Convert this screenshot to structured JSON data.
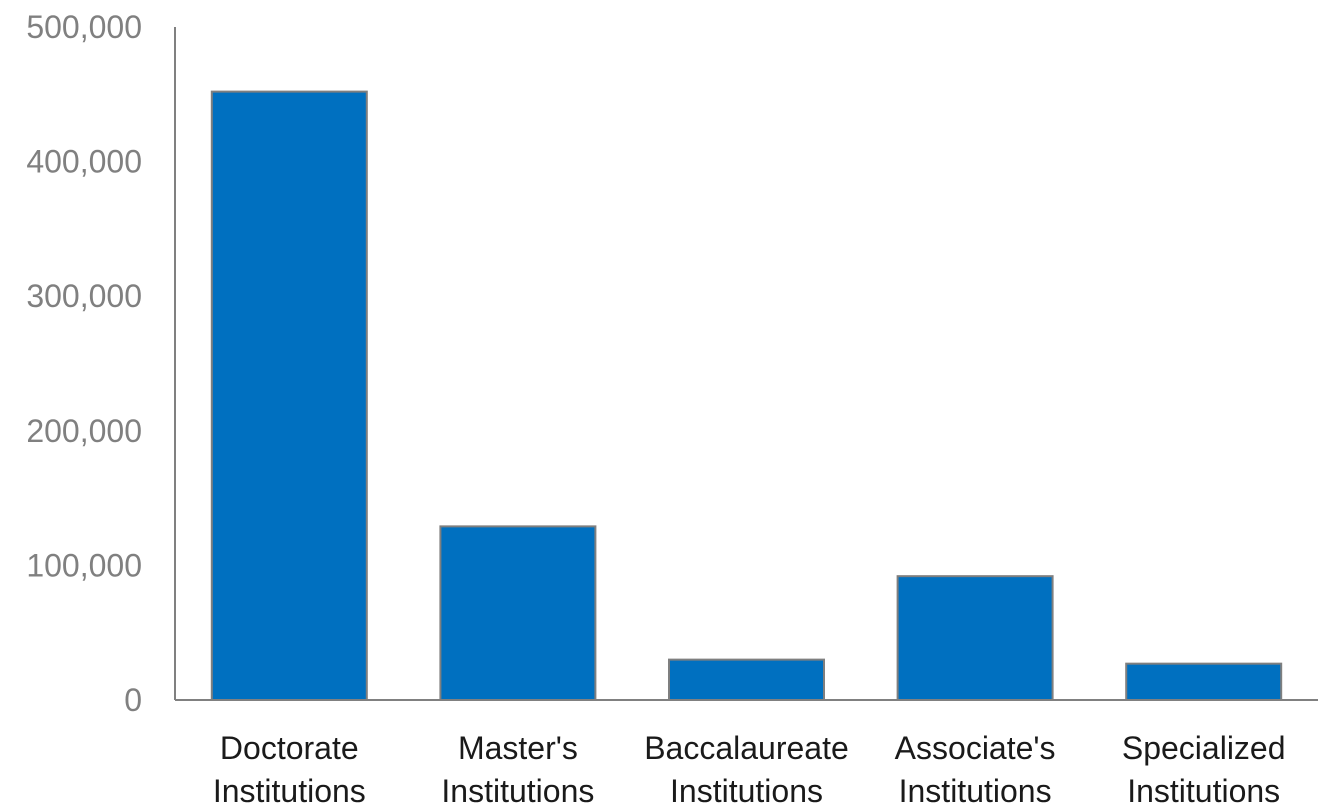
{
  "chart_data": {
    "type": "bar",
    "title": "",
    "xlabel": "",
    "ylabel": "",
    "categories": [
      [
        "Doctorate",
        "Institutions"
      ],
      [
        "Master's",
        "Institutions"
      ],
      [
        "Baccalaureate",
        "Institutions"
      ],
      [
        "Associate's",
        "Institutions"
      ],
      [
        "Specialized",
        "Institutions"
      ]
    ],
    "values": [
      452000,
      129000,
      30000,
      92000,
      27000
    ],
    "ylim": [
      0,
      500000
    ],
    "yticks": [
      0,
      100000,
      200000,
      300000,
      400000,
      500000
    ],
    "ytick_labels": [
      "0",
      "100,000",
      "200,000",
      "300,000",
      "400,000",
      "500,000"
    ],
    "grid": false,
    "legend": "none",
    "colors": {
      "bar_fill": "#0070C0",
      "bar_stroke": "#7f7f7f",
      "axis": "#808080"
    }
  }
}
